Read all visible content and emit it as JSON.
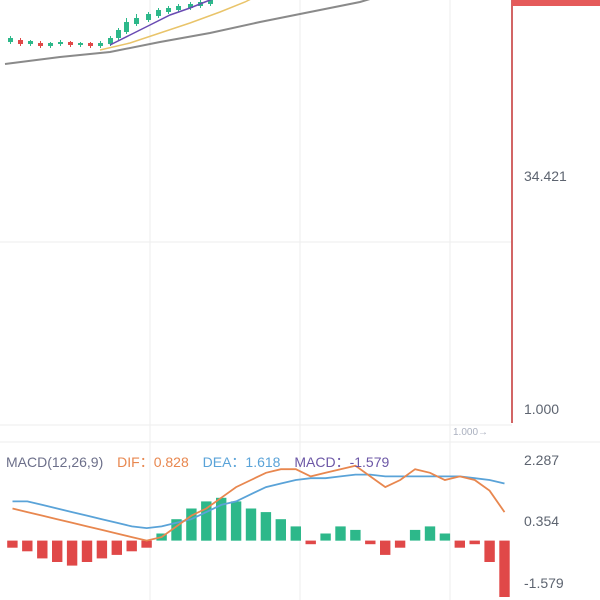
{
  "colors": {
    "up": "#2db88a",
    "down": "#e04848",
    "dif": "#e8874f",
    "dea": "#5aa3d8",
    "macd_label": "#6c57a6",
    "ma_gray": "#8a8a8a",
    "ma_yellow": "#e9c46a",
    "ma_purple": "#6a4bb3",
    "price_line": "#d26565",
    "grid": "#eeeeee",
    "axis_text": "#5d6470"
  },
  "price_axis": {
    "labels": [
      "34.421",
      "1.000"
    ],
    "marker": "1.000→"
  },
  "macd": {
    "title": "MACD(12,26,9)",
    "dif_label": "DIF：0.828",
    "dea_label": "DEA：1.618",
    "macd_label": "MACD：-1.579",
    "axis_labels": [
      "2.287",
      "0.354",
      "-1.579"
    ]
  },
  "chart_data": {
    "type": "line",
    "price_ticks": [
      34.421,
      1.0
    ],
    "macd_ticks": [
      2.287,
      0.354,
      -1.579
    ],
    "dif": [
      0.9,
      0.8,
      0.7,
      0.6,
      0.5,
      0.4,
      0.3,
      0.2,
      0.1,
      0.0,
      0.1,
      0.4,
      0.7,
      0.9,
      1.2,
      1.5,
      1.7,
      1.9,
      2.0,
      2.0,
      1.8,
      1.9,
      2.0,
      2.1,
      1.8,
      1.5,
      1.7,
      2.0,
      1.9,
      1.7,
      1.8,
      1.7,
      1.4,
      0.8
    ],
    "dea": [
      1.1,
      1.1,
      1.0,
      0.9,
      0.8,
      0.7,
      0.6,
      0.5,
      0.4,
      0.35,
      0.4,
      0.5,
      0.6,
      0.8,
      1.0,
      1.1,
      1.3,
      1.5,
      1.6,
      1.7,
      1.75,
      1.75,
      1.8,
      1.85,
      1.85,
      1.8,
      1.8,
      1.8,
      1.8,
      1.8,
      1.8,
      1.75,
      1.7,
      1.6
    ],
    "macd_hist": [
      -0.2,
      -0.3,
      -0.5,
      -0.6,
      -0.7,
      -0.6,
      -0.5,
      -0.4,
      -0.3,
      -0.2,
      0.2,
      0.6,
      0.9,
      1.1,
      1.2,
      1.1,
      0.9,
      0.8,
      0.6,
      0.4,
      -0.1,
      0.2,
      0.4,
      0.3,
      -0.1,
      -0.4,
      -0.2,
      0.3,
      0.4,
      0.2,
      -0.2,
      -0.1,
      -0.6,
      -1.579
    ]
  }
}
